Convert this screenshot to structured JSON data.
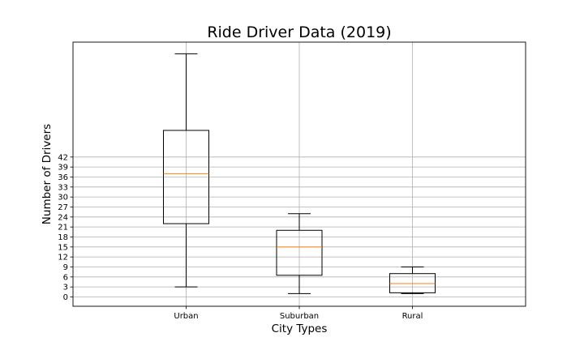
{
  "chart_data": {
    "type": "box",
    "title": "Ride Driver Data (2019)",
    "xlabel": "City Types",
    "ylabel": "Number of Drivers",
    "categories": [
      "Urban",
      "Suburban",
      "Rural"
    ],
    "yticks": [
      0,
      3,
      6,
      9,
      12,
      15,
      18,
      21,
      24,
      27,
      30,
      33,
      36,
      39,
      42
    ],
    "ylim": [
      -2.8,
      76.5
    ],
    "grid": true,
    "series": [
      {
        "category": "Urban",
        "whisker_low": 3,
        "q1": 22,
        "median": 37,
        "q3": 50,
        "whisker_high": 73
      },
      {
        "category": "Suburban",
        "whisker_low": 1,
        "q1": 6.5,
        "median": 15,
        "q3": 20,
        "whisker_high": 25
      },
      {
        "category": "Rural",
        "whisker_low": 1,
        "q1": 1.25,
        "median": 4,
        "q3": 7,
        "whisker_high": 9
      }
    ],
    "colors": {
      "median": "#ff7f0e",
      "box": "#000000",
      "grid": "#b0b0b0"
    }
  }
}
